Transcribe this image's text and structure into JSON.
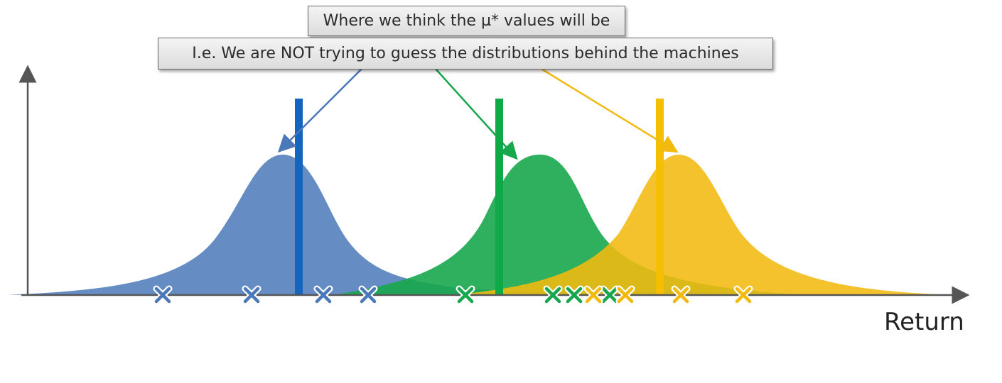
{
  "callouts": {
    "primary": "Where we think the µ* values will be",
    "secondary": "I.e. We are NOT trying to guess the distributions behind the machines"
  },
  "x_axis_label": "Return",
  "colors": {
    "blue": "#4a78b9",
    "green": "#17a74d",
    "yellow": "#f2b90f",
    "axis": "#555555",
    "blue_bar": "#1565c0",
    "green_bar": "#0fa94a",
    "yellow_bar": "#f5bf00"
  },
  "machines": [
    {
      "name": "blue",
      "icon": "x-mark-icon",
      "count": 4
    },
    {
      "name": "green",
      "icon": "x-mark-icon",
      "count": 4
    },
    {
      "name": "yellow",
      "icon": "x-mark-icon",
      "count": 4
    }
  ]
}
